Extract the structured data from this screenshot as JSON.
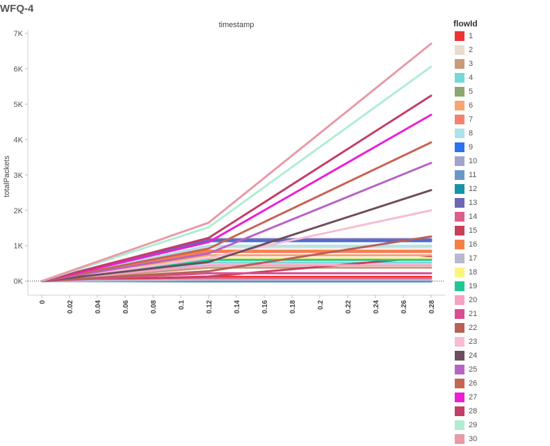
{
  "title": "WFQ-4",
  "chart_data": {
    "type": "line",
    "title": "",
    "top_label": "timestamp",
    "xlabel": "",
    "ylabel": "totalPackets",
    "x": [
      0,
      0.12,
      0.28
    ],
    "xlim": [
      -0.01,
      0.29
    ],
    "ylim": [
      -400,
      7100
    ],
    "x_ticks": [
      {
        "v": 0,
        "label": "0"
      },
      {
        "v": 0.02,
        "label": "0.02"
      },
      {
        "v": 0.04,
        "label": "0.04"
      },
      {
        "v": 0.06,
        "label": "0.06"
      },
      {
        "v": 0.08,
        "label": "0.08"
      },
      {
        "v": 0.1,
        "label": "0.1"
      },
      {
        "v": 0.12,
        "label": "0.12"
      },
      {
        "v": 0.14,
        "label": "0.14"
      },
      {
        "v": 0.16,
        "label": "0.16"
      },
      {
        "v": 0.18,
        "label": "0.18"
      },
      {
        "v": 0.2,
        "label": "0.2"
      },
      {
        "v": 0.22,
        "label": "0.22"
      },
      {
        "v": 0.24,
        "label": "0.24"
      },
      {
        "v": 0.26,
        "label": "0.26"
      },
      {
        "v": 0.28,
        "label": "0.28"
      }
    ],
    "y_ticks": [
      {
        "v": 0,
        "label": "0K"
      },
      {
        "v": 1000,
        "label": "1K"
      },
      {
        "v": 2000,
        "label": "2K"
      },
      {
        "v": 3000,
        "label": "3K"
      },
      {
        "v": 4000,
        "label": "4K"
      },
      {
        "v": 5000,
        "label": "5K"
      },
      {
        "v": 6000,
        "label": "6K"
      },
      {
        "v": 7000,
        "label": "7K"
      }
    ],
    "legend_title": "flowId",
    "legend_position": "right",
    "series": [
      {
        "name": "1",
        "color": "#ee3333",
        "values": [
          0,
          120,
          120
        ]
      },
      {
        "name": "2",
        "color": "#e8dccf",
        "values": [
          0,
          950,
          950
        ]
      },
      {
        "name": "3",
        "color": "#c99a7c",
        "values": [
          0,
          380,
          380
        ]
      },
      {
        "name": "4",
        "color": "#77d8d8",
        "values": [
          0,
          520,
          520
        ]
      },
      {
        "name": "5",
        "color": "#8ea76e",
        "values": [
          0,
          620,
          620
        ]
      },
      {
        "name": "6",
        "color": "#f7a573",
        "values": [
          0,
          730,
          730
        ]
      },
      {
        "name": "7",
        "color": "#f58170",
        "values": [
          0,
          820,
          820
        ]
      },
      {
        "name": "8",
        "color": "#aee3ec",
        "values": [
          0,
          1000,
          1000
        ]
      },
      {
        "name": "9",
        "color": "#2a73f0",
        "values": [
          0,
          1130,
          1130
        ]
      },
      {
        "name": "10",
        "color": "#a3a3cf",
        "values": [
          0,
          1190,
          1190
        ]
      },
      {
        "name": "11",
        "color": "#6898c8",
        "values": [
          0,
          -10,
          -10
        ]
      },
      {
        "name": "12",
        "color": "#1593aa",
        "values": [
          0,
          5,
          5
        ]
      },
      {
        "name": "13",
        "color": "#6e66b5",
        "values": [
          0,
          1170,
          1170
        ]
      },
      {
        "name": "14",
        "color": "#dd5e8a",
        "values": [
          0,
          80,
          80
        ]
      },
      {
        "name": "15",
        "color": "#c84159",
        "values": [
          0,
          130,
          680
        ]
      },
      {
        "name": "16",
        "color": "#f77f45",
        "values": [
          0,
          860,
          860
        ]
      },
      {
        "name": "17",
        "color": "#b8b8ce",
        "values": [
          0,
          30,
          30
        ]
      },
      {
        "name": "18",
        "color": "#fff37d",
        "values": [
          0,
          650,
          650
        ]
      },
      {
        "name": "19",
        "color": "#1ec794",
        "values": [
          0,
          600,
          600
        ]
      },
      {
        "name": "20",
        "color": "#f6a2c5",
        "values": [
          0,
          450,
          450
        ]
      },
      {
        "name": "21",
        "color": "#dd4b92",
        "values": [
          0,
          220,
          220
        ]
      },
      {
        "name": "22",
        "color": "#b86055",
        "values": [
          0,
          280,
          1260
        ]
      },
      {
        "name": "23",
        "color": "#f8bcd4",
        "values": [
          0,
          650,
          2000
        ]
      },
      {
        "name": "24",
        "color": "#6d4e5e",
        "values": [
          0,
          540,
          2570
        ]
      },
      {
        "name": "25",
        "color": "#b763c4",
        "values": [
          0,
          780,
          3340
        ]
      },
      {
        "name": "26",
        "color": "#c86455",
        "values": [
          0,
          920,
          3920
        ]
      },
      {
        "name": "27",
        "color": "#ec1ed6",
        "values": [
          0,
          1100,
          4700
        ]
      },
      {
        "name": "28",
        "color": "#c43c68",
        "values": [
          0,
          1220,
          5240
        ]
      },
      {
        "name": "29",
        "color": "#aeedd3",
        "values": [
          0,
          1520,
          6060
        ]
      },
      {
        "name": "30",
        "color": "#e89aa6",
        "values": [
          0,
          1650,
          6710
        ]
      }
    ]
  }
}
